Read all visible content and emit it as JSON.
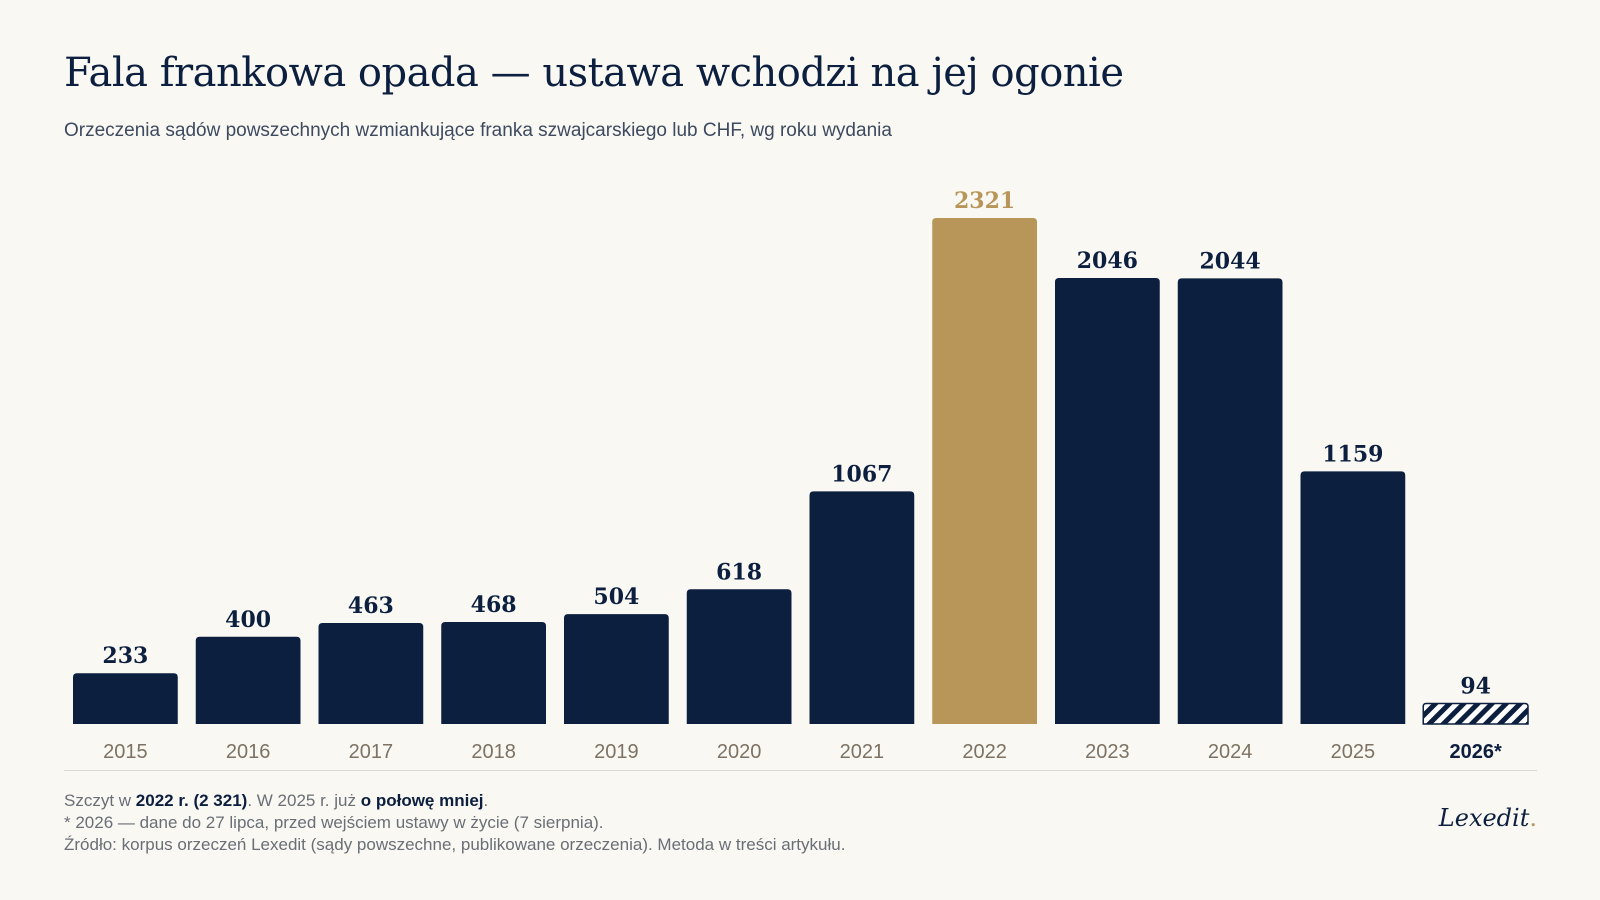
{
  "header": {
    "title": "Fala frankowa opada — ustawa wchodzi na jej ogonie",
    "subtitle": "Orzeczenia sądów powszechnych wzmiankujące franka szwajcarskiego lub CHF, wg roku wydania"
  },
  "colors": {
    "bar": "#0c1f3f",
    "highlight": "#b8965a",
    "axis_label": "#7d7263",
    "background": "#f9f8f3"
  },
  "chart_data": {
    "type": "bar",
    "categories": [
      "2015",
      "2016",
      "2017",
      "2018",
      "2019",
      "2020",
      "2021",
      "2022",
      "2023",
      "2024",
      "2025",
      "2026*"
    ],
    "values": [
      233,
      400,
      463,
      468,
      504,
      618,
      1067,
      2321,
      2046,
      2044,
      1159,
      94
    ],
    "highlight_category": "2022",
    "partial_category": "2026*",
    "ylim": [
      0,
      2321
    ],
    "grid": false,
    "legend": "none",
    "title": "Fala frankowa opada — ustawa wchodzi na jej ogonie",
    "subtitle": "Orzeczenia sądów powszechnych wzmiankujące franka szwajcarskiego lub CHF, wg roku wydania"
  },
  "notes": {
    "line1": {
      "a": "Szczyt w ",
      "b": "2022 r. (2 321)",
      "c": ". W 2025 r. już ",
      "d": "o połowę mniej",
      "e": "."
    },
    "line2": "* 2026 — dane do 27 lipca, przed wejściem ustawy w życie (7 sierpnia).",
    "line3": "Źródło: korpus orzeczeń Lexedit (sądy powszechne, publikowane orzeczenia). Metoda w treści artykułu."
  },
  "brand": {
    "name": "Lexedit",
    "dot": "."
  }
}
